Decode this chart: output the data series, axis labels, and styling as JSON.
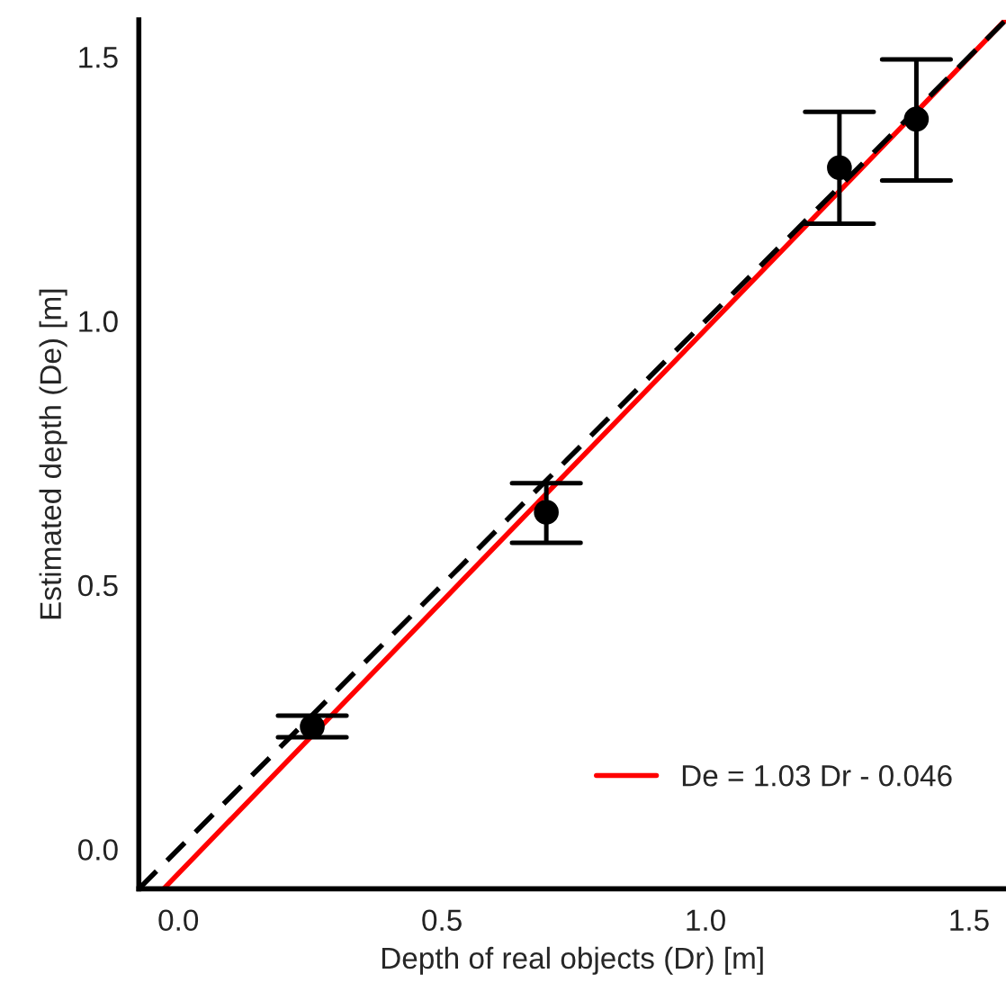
{
  "chart_data": {
    "type": "scatter",
    "xlabel": "Depth of real objects (Dr) [m]",
    "ylabel": "Estimated depth (De) [m]",
    "xlim": [
      -0.075,
      1.57
    ],
    "ylim": [
      -0.075,
      1.57
    ],
    "xticks": [
      {
        "value": 0,
        "label": "0.0"
      },
      0.5,
      {
        "value": 1,
        "label": "1.0"
      },
      1.5
    ],
    "yticks": [
      {
        "value": 0,
        "label": "0.0"
      },
      0.5,
      {
        "value": 1,
        "label": "1.0"
      },
      1.5
    ],
    "grid": false,
    "legend": "bottom right",
    "series": [
      {
        "color": "#000000",
        "marker": "circle",
        "x": [
          0.254,
          0.698,
          1.254,
          1.4
        ],
        "values": [
          0.232,
          0.638,
          1.29,
          1.382
        ],
        "errors": [
          [
            0.212,
            0.253
          ],
          [
            0.58,
            0.693
          ],
          [
            1.184,
            1.396
          ],
          [
            1.266,
            1.495
          ]
        ]
      },
      {
        "type": "line",
        "color": "#000000",
        "line_style": "dashed",
        "x": [
          -0.075,
          1.57
        ],
        "values": [
          -0.075,
          1.57
        ]
      },
      {
        "type": "line",
        "name": "De = 1.03 Dr - 0.046",
        "color": "#ff0000",
        "line_style": "solid",
        "x": [
          -0.028,
          1.568
        ],
        "values": [
          -0.075,
          1.569
        ]
      }
    ]
  }
}
